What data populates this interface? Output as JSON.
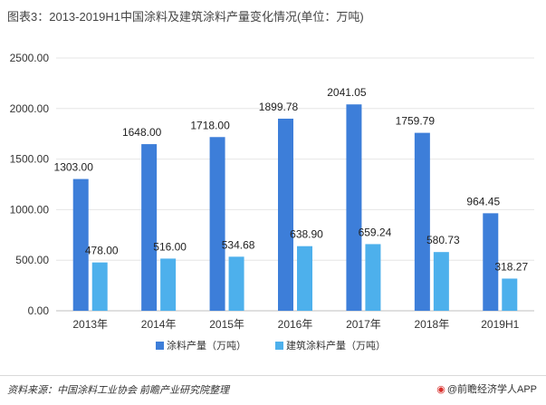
{
  "chart_data": {
    "type": "bar",
    "title": "图表3：2013-2019H1中国涂料及建筑涂料产量变化情况(单位：万吨)",
    "categories": [
      "2013年",
      "2014年",
      "2015年",
      "2016年",
      "2017年",
      "2018年",
      "2019H1"
    ],
    "series": [
      {
        "name": "涂料产量（万吨）",
        "values": [
          1303.0,
          1648.0,
          1718.0,
          1899.78,
          2041.05,
          1759.79,
          964.45
        ],
        "color": "#3d7ed9"
      },
      {
        "name": "建筑涂料产量（万吨）",
        "values": [
          478.0,
          516.0,
          534.68,
          638.9,
          659.24,
          580.73,
          318.27
        ],
        "color": "#4db0ec"
      }
    ],
    "ylim": [
      0,
      2500
    ],
    "yticks": [
      0,
      500,
      1000,
      1500,
      2000,
      2500
    ],
    "ytick_labels": [
      "0.00",
      "500.00",
      "1000.00",
      "1500.00",
      "2000.00",
      "2500.00"
    ],
    "data_labels": [
      [
        "1303.00",
        "1648.00",
        "1718.00",
        "1899.78",
        "2041.05",
        "1759.79",
        "964.45"
      ],
      [
        "478.00",
        "516.00",
        "534.68",
        "638.90",
        "659.24",
        "580.73",
        "318.27"
      ]
    ],
    "grid": true,
    "legend_position": "bottom-center",
    "xlabel": "",
    "ylabel": ""
  },
  "footer": {
    "source": "资料来源：中国涂料工业协会 前瞻产业研究院整理",
    "brand_icon": "weibo-icon",
    "brand_text": "@前瞻经济学人APP"
  }
}
